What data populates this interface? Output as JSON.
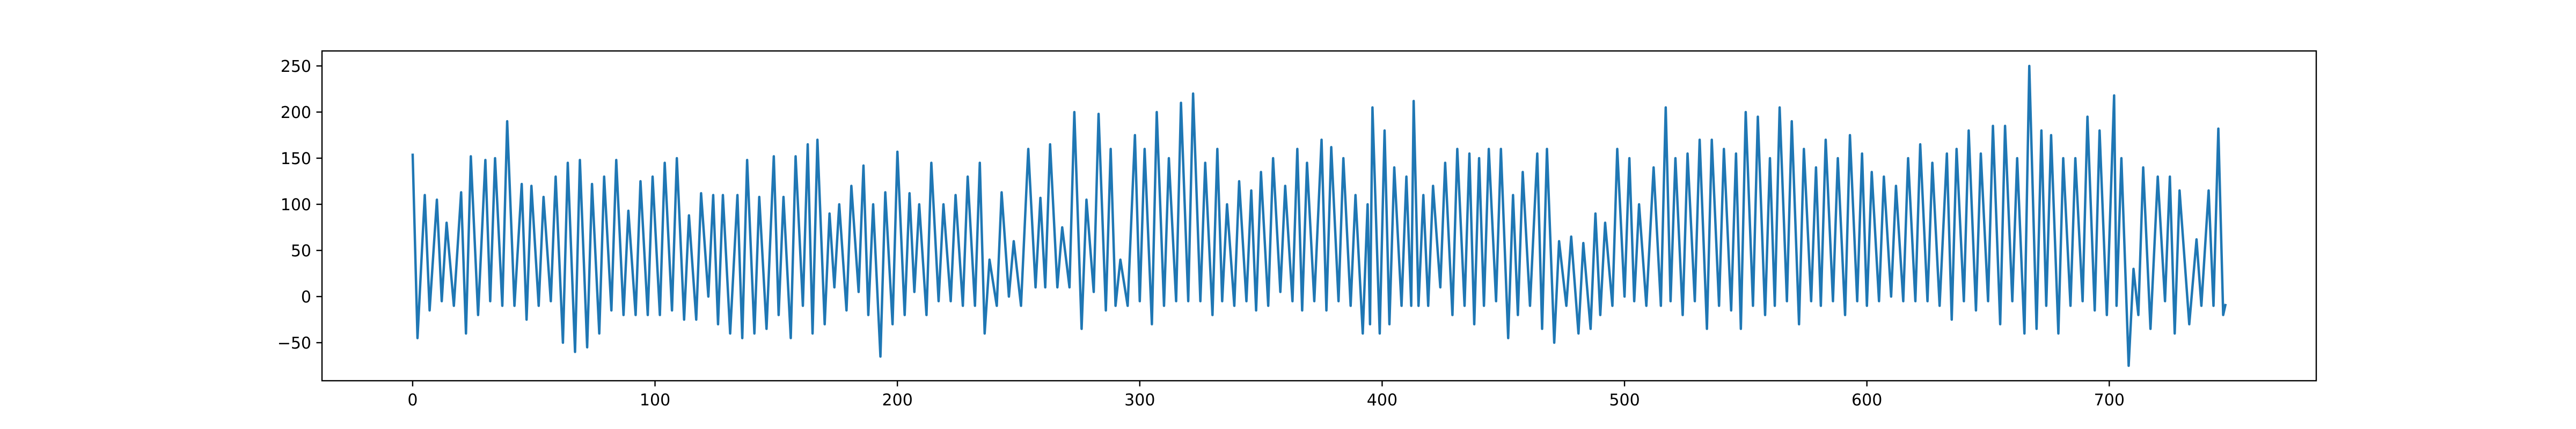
{
  "chart_data": {
    "type": "line",
    "color": "#1f77b4",
    "xlim": [
      -37.4,
      785.4
    ],
    "ylim": [
      -91.25,
      266.25
    ],
    "xticks": [
      0,
      100,
      200,
      300,
      400,
      500,
      600,
      700
    ],
    "yticks": [
      {
        "value": -50,
        "label": "−50"
      },
      0,
      50,
      100,
      150,
      200,
      250
    ],
    "x": [
      0,
      2,
      5,
      7,
      10,
      12,
      14,
      17,
      20,
      22,
      24,
      27,
      30,
      32,
      34,
      37,
      39,
      42,
      45,
      47,
      49,
      52,
      54,
      57,
      59,
      62,
      64,
      67,
      69,
      72,
      74,
      77,
      79,
      82,
      84,
      87,
      89,
      92,
      94,
      97,
      99,
      102,
      104,
      107,
      109,
      112,
      114,
      117,
      119,
      122,
      124,
      126,
      128,
      131,
      134,
      136,
      138,
      141,
      143,
      146,
      149,
      151,
      153,
      156,
      158,
      161,
      163,
      165,
      167,
      170,
      172,
      174,
      176,
      179,
      181,
      184,
      186,
      188,
      190,
      193,
      195,
      198,
      200,
      203,
      205,
      207,
      209,
      212,
      214,
      217,
      219,
      222,
      224,
      227,
      229,
      232,
      234,
      236,
      238,
      241,
      243,
      246,
      248,
      251,
      254,
      257,
      259,
      261,
      263,
      266,
      268,
      271,
      273,
      276,
      278,
      281,
      283,
      286,
      288,
      290,
      292,
      295,
      298,
      300,
      302,
      305,
      307,
      310,
      312,
      315,
      317,
      320,
      322,
      325,
      327,
      330,
      332,
      334,
      336,
      339,
      341,
      344,
      346,
      348,
      350,
      353,
      355,
      358,
      360,
      363,
      365,
      367,
      369,
      372,
      375,
      377,
      379,
      382,
      384,
      387,
      389,
      392,
      394,
      395,
      396,
      399,
      401,
      403,
      405,
      408,
      410,
      412,
      413,
      415,
      417,
      419,
      421,
      424,
      426,
      429,
      431,
      434,
      436,
      438,
      440,
      442,
      444,
      447,
      449,
      452,
      454,
      456,
      458,
      461,
      464,
      466,
      468,
      471,
      473,
      476,
      478,
      481,
      483,
      486,
      488,
      490,
      492,
      495,
      497,
      500,
      502,
      504,
      506,
      509,
      512,
      515,
      517,
      519,
      521,
      524,
      526,
      529,
      531,
      534,
      536,
      539,
      541,
      544,
      546,
      548,
      550,
      553,
      555,
      558,
      560,
      562,
      564,
      567,
      569,
      572,
      574,
      577,
      579,
      581,
      583,
      586,
      588,
      591,
      593,
      596,
      598,
      600,
      602,
      605,
      607,
      610,
      612,
      615,
      617,
      620,
      622,
      625,
      627,
      630,
      633,
      635,
      637,
      640,
      642,
      645,
      647,
      650,
      652,
      655,
      657,
      660,
      662,
      665,
      667,
      670,
      672,
      674,
      676,
      679,
      681,
      684,
      686,
      689,
      691,
      694,
      696,
      699,
      702,
      703,
      705,
      708,
      710,
      712,
      714,
      717,
      720,
      723,
      725,
      727,
      729,
      733,
      736,
      738,
      741,
      743,
      745,
      747,
      748
    ],
    "values": [
      155,
      -45,
      110,
      -15,
      105,
      -5,
      80,
      -10,
      113,
      -40,
      152,
      -20,
      148,
      -5,
      150,
      -10,
      190,
      -10,
      122,
      -25,
      120,
      -10,
      108,
      -5,
      130,
      -50,
      145,
      -60,
      148,
      -55,
      122,
      -40,
      130,
      -15,
      148,
      -20,
      93,
      -20,
      125,
      -20,
      130,
      -20,
      145,
      -15,
      150,
      -25,
      88,
      -25,
      112,
      0,
      110,
      -30,
      110,
      -40,
      110,
      -45,
      148,
      -40,
      108,
      -35,
      152,
      -20,
      108,
      -45,
      152,
      -10,
      165,
      -40,
      170,
      -30,
      90,
      10,
      100,
      -15,
      120,
      5,
      142,
      -20,
      100,
      -65,
      113,
      -30,
      157,
      -20,
      112,
      5,
      100,
      -20,
      145,
      -5,
      100,
      -5,
      110,
      -10,
      130,
      -10,
      145,
      -40,
      40,
      -10,
      113,
      0,
      60,
      -10,
      160,
      10,
      107,
      10,
      165,
      10,
      75,
      10,
      200,
      -35,
      105,
      5,
      198,
      -15,
      160,
      -10,
      40,
      -10,
      175,
      -5,
      160,
      -30,
      200,
      -10,
      150,
      -5,
      210,
      -5,
      220,
      -5,
      145,
      -20,
      160,
      -5,
      100,
      -10,
      125,
      -5,
      115,
      -15,
      135,
      -10,
      150,
      5,
      120,
      -5,
      160,
      -15,
      145,
      -5,
      170,
      -15,
      162,
      -5,
      150,
      -10,
      110,
      -40,
      100,
      -30,
      205,
      -40,
      180,
      -30,
      140,
      -10,
      130,
      -10,
      212,
      -10,
      110,
      -10,
      120,
      10,
      145,
      -20,
      160,
      -10,
      155,
      -30,
      150,
      -10,
      160,
      -5,
      160,
      -45,
      110,
      -20,
      135,
      -10,
      155,
      -35,
      160,
      -50,
      60,
      -10,
      65,
      -40,
      58,
      -35,
      90,
      -20,
      80,
      -10,
      160,
      0,
      150,
      -5,
      100,
      -10,
      140,
      -10,
      205,
      -5,
      150,
      -20,
      155,
      -5,
      170,
      -35,
      170,
      -10,
      160,
      -15,
      155,
      -35,
      200,
      -10,
      195,
      -20,
      150,
      -10,
      205,
      -5,
      190,
      -30,
      160,
      -5,
      140,
      -10,
      170,
      -5,
      150,
      -20,
      175,
      -5,
      155,
      -10,
      135,
      -5,
      130,
      0,
      120,
      -5,
      150,
      -5,
      165,
      -5,
      145,
      -10,
      155,
      -25,
      160,
      -5,
      180,
      -15,
      155,
      -5,
      185,
      -30,
      185,
      -5,
      150,
      -40,
      250,
      -35,
      180,
      -10,
      175,
      -40,
      150,
      -10,
      150,
      -5,
      195,
      -15,
      180,
      -20,
      218,
      -10,
      150,
      -75,
      30,
      -20,
      140,
      -35,
      130,
      -5,
      130,
      -40,
      115,
      -30,
      62,
      -10,
      115,
      -10,
      182,
      -20,
      -8
    ]
  }
}
